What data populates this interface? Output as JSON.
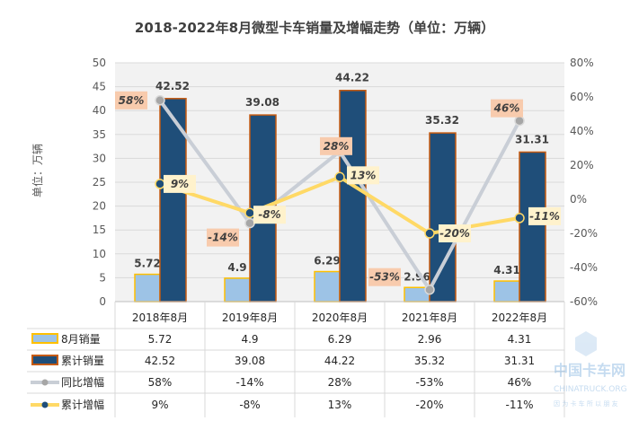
{
  "chart_data": {
    "type": "bar",
    "title": "2018-2022年8月微型卡车销量及增幅走势（单位：万辆）",
    "ylabel": "单位：万辆",
    "categories": [
      "2018年8月",
      "2019年8月",
      "2020年8月",
      "2021年8月",
      "2022年8月"
    ],
    "ylim": [
      0,
      50
    ],
    "yticks": [
      "0",
      "5",
      "10",
      "15",
      "20",
      "25",
      "30",
      "35",
      "40",
      "45",
      "50"
    ],
    "y2lim": [
      -60,
      80
    ],
    "y2ticks": [
      "-60%",
      "-40%",
      "-20%",
      "0%",
      "20%",
      "40%",
      "60%",
      "80%"
    ],
    "grid": true,
    "legend": "bottom data table",
    "series": [
      {
        "name": "8月销量",
        "type": "bar",
        "axis": "left",
        "values": [
          5.72,
          4.9,
          6.29,
          2.96,
          4.31
        ],
        "labels": [
          "5.72",
          "4.9",
          "6.29",
          "2.96",
          "4.31"
        ],
        "color": "#9DC3E6",
        "edge": "#FFC000"
      },
      {
        "name": "累计销量",
        "type": "bar",
        "axis": "left",
        "values": [
          42.52,
          39.08,
          44.22,
          35.32,
          31.31
        ],
        "labels": [
          "42.52",
          "39.08",
          "44.22",
          "35.32",
          "31.31"
        ],
        "color": "#1F4E79",
        "edge": "#C55A11"
      },
      {
        "name": "同比增幅",
        "type": "line",
        "axis": "right",
        "values": [
          58,
          -14,
          28,
          -53,
          46
        ],
        "labels": [
          "58%",
          "-14%",
          "28%",
          "-53%",
          "46%"
        ],
        "color": "#C9CED6",
        "marker": "#A6A6A6",
        "labelbg": "#F8CBAD"
      },
      {
        "name": "累计增幅",
        "type": "line",
        "axis": "right",
        "values": [
          9,
          -8,
          13,
          -20,
          -11
        ],
        "labels": [
          "9%",
          "-8%",
          "13%",
          "-20%",
          "-11%"
        ],
        "color": "#FFD966",
        "marker": "#1F4E79",
        "labelbg": "#FFF2CC"
      }
    ]
  },
  "watermark": {
    "text": "中国卡车网",
    "sub": "CHINATRUCK.ORG",
    "slogan": "因 为 卡 车 所 以 朋 友"
  }
}
